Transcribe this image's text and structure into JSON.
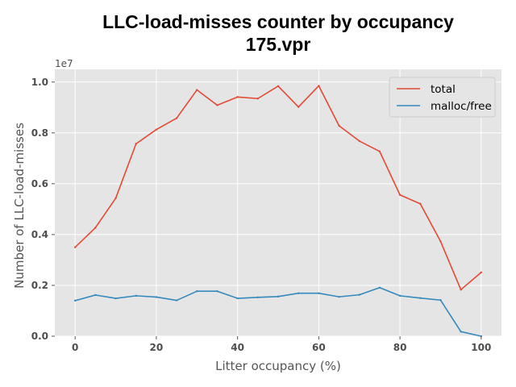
{
  "chart_data": {
    "type": "line",
    "title": "LLC-load-misses counter by occupancy",
    "subtitle": "175.vpr",
    "xlabel": "Litter occupancy (%)",
    "ylabel": "Number of LLC-load-misses",
    "y_offset_text": "1e7",
    "y_multiplier": 10000000,
    "xlim": [
      -5,
      105
    ],
    "ylim": [
      0,
      1.05
    ],
    "x_ticks": [
      0,
      20,
      40,
      60,
      80,
      100
    ],
    "x_tick_labels": [
      "0",
      "20",
      "40",
      "60",
      "80",
      "100"
    ],
    "y_ticks": [
      0.0,
      0.2,
      0.4,
      0.6,
      0.8,
      1.0
    ],
    "y_tick_labels": [
      "0.0",
      "0.2",
      "0.4",
      "0.6",
      "0.8",
      "1.0"
    ],
    "grid": true,
    "legend_position": "top-right",
    "x": [
      0,
      5,
      10,
      15,
      20,
      25,
      30,
      35,
      40,
      45,
      50,
      55,
      60,
      65,
      70,
      75,
      80,
      85,
      90,
      95,
      100
    ],
    "series": [
      {
        "name": "total",
        "color": "#E24A33",
        "values": [
          0.35,
          0.427,
          0.543,
          0.757,
          0.813,
          0.858,
          0.969,
          0.909,
          0.941,
          0.935,
          0.984,
          0.902,
          0.985,
          0.828,
          0.768,
          0.727,
          0.556,
          0.521,
          0.373,
          0.183,
          0.251
        ]
      },
      {
        "name": "malloc/free",
        "color": "#348ABD",
        "values": [
          0.14,
          0.162,
          0.149,
          0.159,
          0.154,
          0.141,
          0.177,
          0.177,
          0.149,
          0.153,
          0.156,
          0.169,
          0.169,
          0.155,
          0.163,
          0.191,
          0.159,
          0.15,
          0.142,
          0.018,
          0.0
        ]
      }
    ]
  }
}
